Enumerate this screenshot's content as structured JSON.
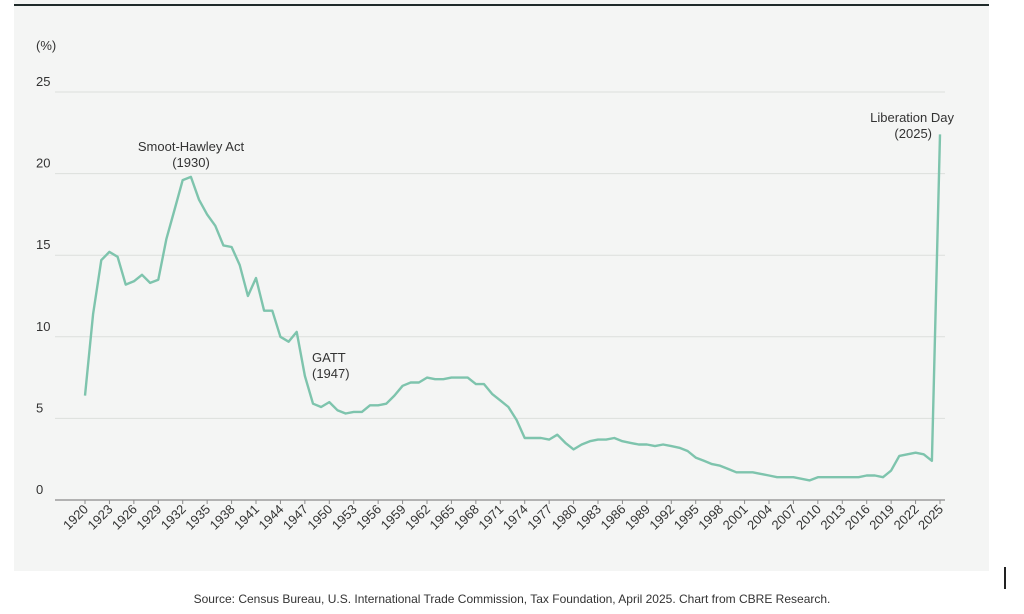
{
  "chart_data": {
    "type": "line",
    "ylabel": "(%)",
    "ylim": [
      0,
      25
    ],
    "yticks": [
      0,
      5,
      10,
      15,
      20,
      25
    ],
    "grid": "horizontal",
    "line_color": "#7ec4ad",
    "x": [
      1920,
      1921,
      1922,
      1923,
      1924,
      1925,
      1926,
      1927,
      1928,
      1929,
      1930,
      1931,
      1932,
      1933,
      1934,
      1935,
      1936,
      1937,
      1938,
      1939,
      1940,
      1941,
      1942,
      1943,
      1944,
      1945,
      1946,
      1947,
      1948,
      1949,
      1950,
      1951,
      1952,
      1953,
      1954,
      1955,
      1956,
      1957,
      1958,
      1959,
      1960,
      1961,
      1962,
      1963,
      1964,
      1965,
      1966,
      1967,
      1968,
      1969,
      1970,
      1971,
      1972,
      1973,
      1974,
      1975,
      1976,
      1977,
      1978,
      1979,
      1980,
      1981,
      1982,
      1983,
      1984,
      1985,
      1986,
      1987,
      1988,
      1989,
      1990,
      1991,
      1992,
      1993,
      1994,
      1995,
      1996,
      1997,
      1998,
      1999,
      2000,
      2001,
      2002,
      2003,
      2004,
      2005,
      2006,
      2007,
      2008,
      2009,
      2010,
      2011,
      2012,
      2013,
      2014,
      2015,
      2016,
      2017,
      2018,
      2019,
      2020,
      2021,
      2022,
      2023,
      2024,
      2025
    ],
    "values": [
      6.4,
      11.4,
      14.7,
      15.2,
      14.9,
      13.2,
      13.4,
      13.8,
      13.3,
      13.5,
      16.0,
      17.8,
      19.6,
      19.8,
      18.4,
      17.5,
      16.8,
      15.6,
      15.5,
      14.4,
      12.5,
      13.6,
      11.6,
      11.6,
      10.0,
      9.7,
      10.3,
      7.6,
      5.9,
      5.7,
      6.0,
      5.5,
      5.3,
      5.4,
      5.4,
      5.8,
      5.8,
      5.9,
      6.4,
      7.0,
      7.2,
      7.2,
      7.5,
      7.4,
      7.4,
      7.5,
      7.5,
      7.5,
      7.1,
      7.1,
      6.5,
      6.1,
      5.7,
      4.9,
      3.8,
      3.8,
      3.8,
      3.7,
      4.0,
      3.5,
      3.1,
      3.4,
      3.6,
      3.7,
      3.7,
      3.8,
      3.6,
      3.5,
      3.4,
      3.4,
      3.3,
      3.4,
      3.3,
      3.2,
      3.0,
      2.6,
      2.4,
      2.2,
      2.1,
      1.9,
      1.7,
      1.7,
      1.7,
      1.6,
      1.5,
      1.4,
      1.4,
      1.4,
      1.3,
      1.2,
      1.4,
      1.4,
      1.4,
      1.4,
      1.4,
      1.4,
      1.5,
      1.5,
      1.4,
      1.8,
      2.7,
      2.8,
      2.9,
      2.8,
      2.4,
      22.4
    ],
    "xtick_labels": [
      "1920",
      "1923",
      "1926",
      "1929",
      "1932",
      "1935",
      "1938",
      "1941",
      "1944",
      "1947",
      "1950",
      "1953",
      "1956",
      "1959",
      "1962",
      "1965",
      "1968",
      "1971",
      "1974",
      "1977",
      "1980",
      "1983",
      "1986",
      "1989",
      "1992",
      "1995",
      "1998",
      "2001",
      "2004",
      "2007",
      "2010",
      "2013",
      "2016",
      "2019",
      "2022",
      "2025"
    ],
    "annotations": [
      {
        "line1": "Smoot-Hawley Act",
        "line2": "(1930)"
      },
      {
        "line1": "GATT",
        "line2": "(1947)"
      },
      {
        "line1": "Liberation Day",
        "line2": "(2025)"
      }
    ]
  },
  "source": "Source: Census Bureau, U.S. International Trade Commission, Tax Foundation, April 2025. Chart from CBRE Research."
}
